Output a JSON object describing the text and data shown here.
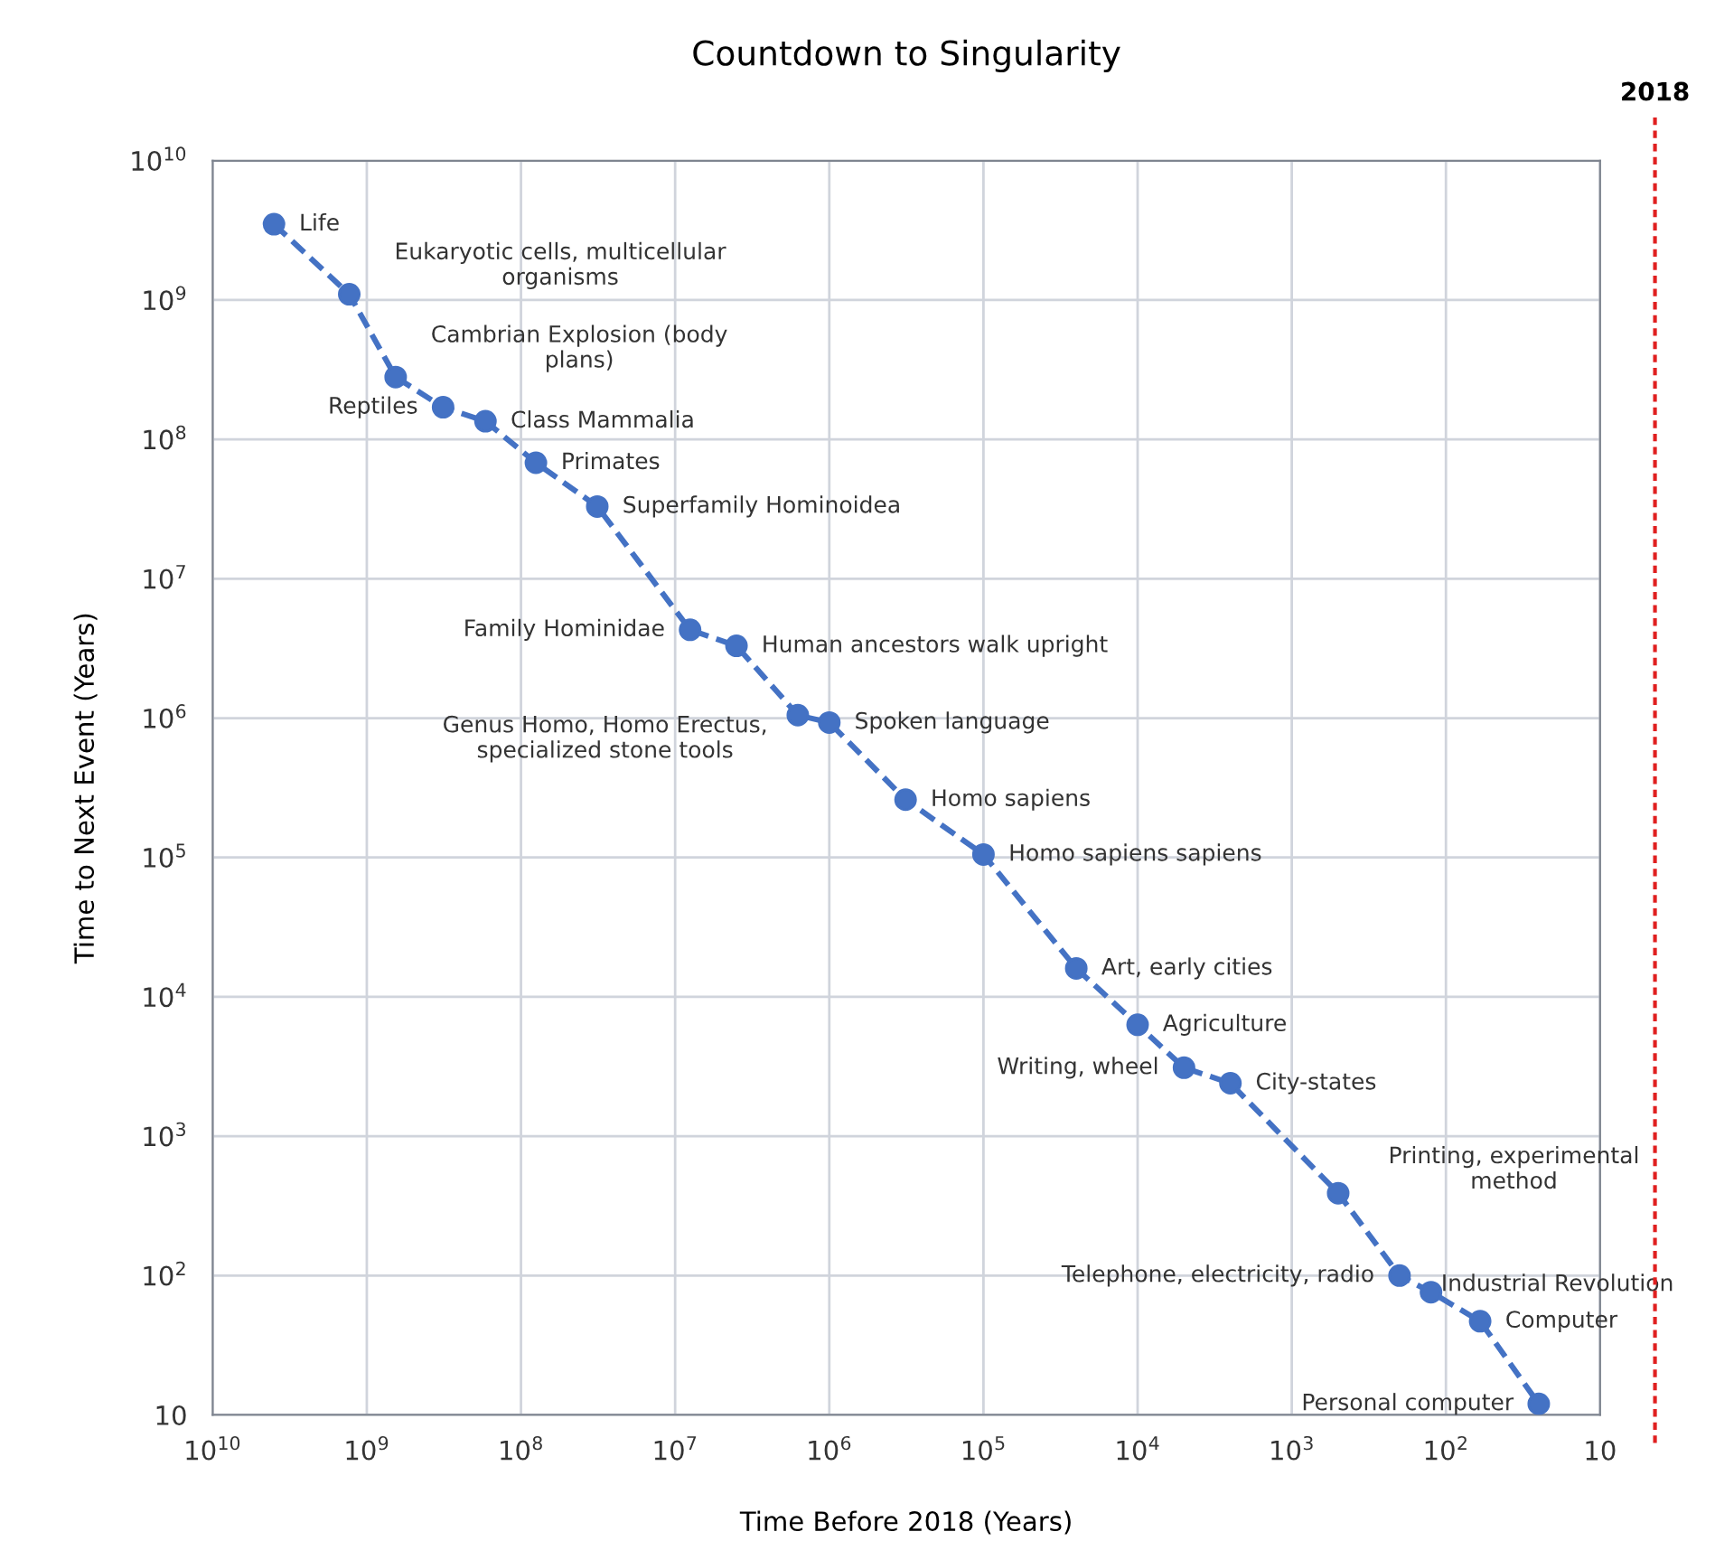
{
  "chart_data": {
    "type": "line",
    "title": "Countdown to Singularity",
    "xlabel": "Time Before 2018 (Years)",
    "ylabel": "Time to Next Event (Years)",
    "log": "xy",
    "grid": true,
    "marker": "circle",
    "line_style": "dashed",
    "xlim": [
      10000000000,
      10
    ],
    "ylim": [
      10,
      10000000000
    ],
    "xticks": [
      {
        "value": 10000000000,
        "label": "10$^{10}$"
      },
      {
        "value": 1000000000,
        "label": "10$^{9}$"
      },
      {
        "value": 100000000,
        "label": "10$^{8}$"
      },
      {
        "value": 10000000,
        "label": "10$^{7}$"
      },
      {
        "value": 1000000,
        "label": "10$^{6}$"
      },
      {
        "value": 100000,
        "label": "10$^{5}$"
      },
      {
        "value": 10000,
        "label": "10$^{4}$"
      },
      {
        "value": 1000,
        "label": "10$^{3}$"
      },
      {
        "value": 100,
        "label": "10$^{2}$"
      },
      10
    ],
    "yticks": [
      10,
      {
        "value": 100,
        "label": "10$^{2}$"
      },
      {
        "value": 1000,
        "label": "10$^{3}$"
      },
      {
        "value": 10000,
        "label": "10$^{4}$"
      },
      {
        "value": 100000,
        "label": "10$^{5}$"
      },
      {
        "value": 1000000,
        "label": "10$^{6}$"
      },
      {
        "value": 10000000,
        "label": "10$^{7}$"
      },
      {
        "value": 100000000,
        "label": "10$^{8}$"
      },
      {
        "value": 1000000000,
        "label": "10$^{9}$"
      },
      {
        "value": 10000000000,
        "label": "10$^{10}$"
      }
    ],
    "x": [
      4000000000,
      1300000000,
      650000000,
      320000000,
      170000000,
      80000000,
      32000000,
      8000000,
      4000000,
      1600000,
      1000000,
      320000,
      100000,
      25000,
      10000,
      5000,
      2500,
      500,
      200,
      125,
      60,
      25
    ],
    "series": [
      {
        "color": "#4472c4",
        "values": [
          3500000000,
          1100000000,
          280000000,
          170000000,
          135000000,
          68000000,
          33000000,
          4300000,
          3300000,
          1050000,
          930000,
          260000,
          105000,
          16000,
          6300,
          3100,
          2400,
          390,
          100,
          76,
          47,
          12
        ]
      }
    ],
    "annotations": [
      {
        "text": "Life",
        "x": 4000000000,
        "y": 3500000000
      },
      {
        "text": "Eukaryotic cells, multicellular\norganisms",
        "x": 1300000000,
        "y": 1100000000
      },
      {
        "text": "Cambrian Explosion (body\nplans)",
        "x": 650000000,
        "y": 280000000
      },
      {
        "text": "Reptiles",
        "x": 320000000,
        "y": 170000000
      },
      {
        "text": "Class Mammalia",
        "x": 170000000,
        "y": 135000000
      },
      {
        "text": "Primates",
        "x": 80000000,
        "y": 68000000
      },
      {
        "text": "Superfamily Hominoidea",
        "x": 32000000,
        "y": 33000000
      },
      {
        "text": "Family Hominidae",
        "x": 8000000,
        "y": 4300000
      },
      {
        "text": "Human ancestors walk upright",
        "x": 4000000,
        "y": 3300000
      },
      {
        "text": "Genus Homo, Homo Erectus,\nspecialized stone tools",
        "x": 1600000,
        "y": 1050000
      },
      {
        "text": "Spoken language",
        "x": 1000000,
        "y": 930000
      },
      {
        "text": "Homo sapiens",
        "x": 320000,
        "y": 260000
      },
      {
        "text": "Homo sapiens sapiens",
        "x": 100000,
        "y": 105000
      },
      {
        "text": "Art, early cities",
        "x": 25000,
        "y": 16000
      },
      {
        "text": "Agriculture",
        "x": 10000,
        "y": 6300
      },
      {
        "text": "Writing, wheel",
        "x": 5000,
        "y": 3100
      },
      {
        "text": "City-states",
        "x": 2500,
        "y": 2400
      },
      {
        "text": "Printing, experimental\nmethod",
        "x": 500,
        "y": 390
      },
      {
        "text": "Telephone, electricity, radio",
        "x": 200,
        "y": 100
      },
      {
        "text": "Industrial Revolution",
        "x": 125,
        "y": 76
      },
      {
        "text": "Computer",
        "x": 60,
        "y": 47
      },
      {
        "text": "Personal computer",
        "x": 25,
        "y": 12
      },
      "2018"
    ]
  }
}
